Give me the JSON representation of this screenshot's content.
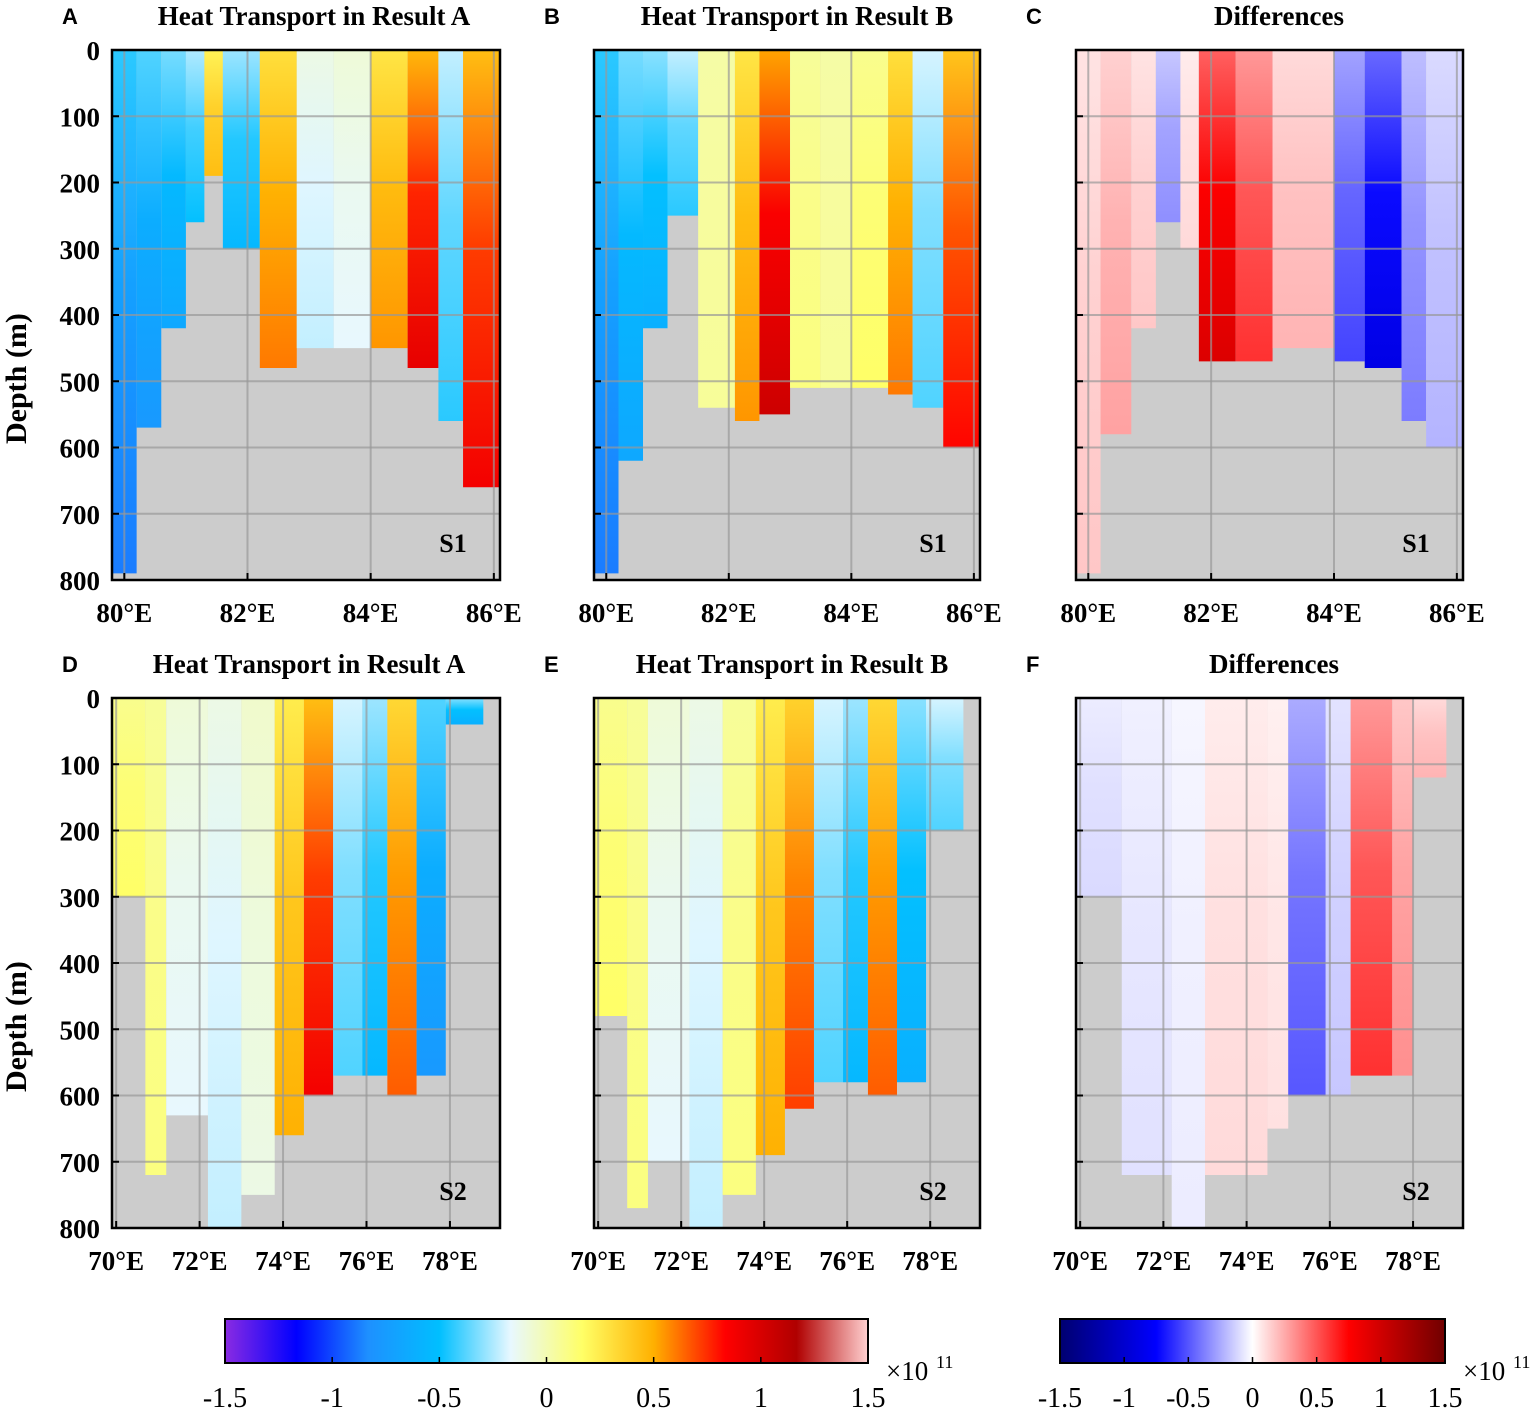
{
  "chart_data": [
    {
      "panel": "A",
      "type": "heatmap",
      "title": "Heat Transport in Result A",
      "section": "S1",
      "xlim": [
        79.8,
        86.1
      ],
      "ylim": [
        0,
        800
      ],
      "xticks": [
        "80°E",
        "82°E",
        "84°E",
        "86°E"
      ],
      "xtick_values": [
        80,
        82,
        84,
        86
      ],
      "yticks": [
        "0",
        "100",
        "200",
        "300",
        "400",
        "500",
        "600",
        "700",
        "800"
      ],
      "ytick_values": [
        0,
        100,
        200,
        300,
        400,
        500,
        600,
        700,
        800
      ],
      "ylabel": "Depth (m)",
      "units": "×10^11",
      "colormap": "heat",
      "columns": [
        {
          "x0": 79.8,
          "x1": 80.2,
          "v": -0.8,
          "bottom": 790
        },
        {
          "x0": 80.2,
          "x1": 80.6,
          "v": -0.7,
          "bottom": 570
        },
        {
          "x0": 80.6,
          "x1": 81.0,
          "v": -0.6,
          "bottom": 420
        },
        {
          "x0": 81.0,
          "x1": 81.3,
          "v": -0.45,
          "bottom": 260
        },
        {
          "x0": 81.3,
          "x1": 81.6,
          "v": 0.4,
          "bottom": 190
        },
        {
          "x0": 81.6,
          "x1": 82.2,
          "v": -0.5,
          "bottom": 300
        },
        {
          "x0": 82.2,
          "x1": 82.8,
          "v": 0.55,
          "bottom": 480
        },
        {
          "x0": 82.8,
          "x1": 83.4,
          "v": -0.2,
          "bottom": 450
        },
        {
          "x0": 83.4,
          "x1": 84.0,
          "v": -0.15,
          "bottom": 450
        },
        {
          "x0": 84.0,
          "x1": 84.6,
          "v": 0.5,
          "bottom": 450
        },
        {
          "x0": 84.6,
          "x1": 85.1,
          "v": 0.85,
          "bottom": 480
        },
        {
          "x0": 85.1,
          "x1": 85.5,
          "v": -0.4,
          "bottom": 560
        },
        {
          "x0": 85.5,
          "x1": 86.1,
          "v": 0.8,
          "bottom": 660
        }
      ]
    },
    {
      "panel": "B",
      "type": "heatmap",
      "title": "Heat Transport in Result B",
      "section": "S1",
      "xlim": [
        79.8,
        86.1
      ],
      "ylim": [
        0,
        800
      ],
      "xticks": [
        "80°E",
        "82°E",
        "84°E",
        "86°E"
      ],
      "xtick_values": [
        80,
        82,
        84,
        86
      ],
      "yticks": [],
      "ytick_values": [
        0,
        100,
        200,
        300,
        400,
        500,
        600,
        700,
        800
      ],
      "ylabel": "",
      "units": "×10^11",
      "colormap": "heat",
      "columns": [
        {
          "x0": 79.8,
          "x1": 80.2,
          "v": -0.8,
          "bottom": 790
        },
        {
          "x0": 80.2,
          "x1": 80.6,
          "v": -0.6,
          "bottom": 620
        },
        {
          "x0": 80.6,
          "x1": 81.0,
          "v": -0.55,
          "bottom": 420
        },
        {
          "x0": 81.0,
          "x1": 81.5,
          "v": -0.4,
          "bottom": 250
        },
        {
          "x0": 81.5,
          "x1": 82.1,
          "v": 0.05,
          "bottom": 540
        },
        {
          "x0": 82.1,
          "x1": 82.5,
          "v": 0.5,
          "bottom": 560
        },
        {
          "x0": 82.5,
          "x1": 83.0,
          "v": 0.95,
          "bottom": 550
        },
        {
          "x0": 83.0,
          "x1": 83.5,
          "v": 0.1,
          "bottom": 510
        },
        {
          "x0": 83.5,
          "x1": 84.0,
          "v": 0.05,
          "bottom": 510
        },
        {
          "x0": 84.0,
          "x1": 84.6,
          "v": 0.15,
          "bottom": 510
        },
        {
          "x0": 84.6,
          "x1": 85.0,
          "v": 0.55,
          "bottom": 520
        },
        {
          "x0": 85.0,
          "x1": 85.5,
          "v": -0.35,
          "bottom": 540
        },
        {
          "x0": 85.5,
          "x1": 86.1,
          "v": 0.75,
          "bottom": 600
        }
      ]
    },
    {
      "panel": "C",
      "type": "heatmap",
      "title": "Differences",
      "section": "S1",
      "xlim": [
        79.8,
        86.1
      ],
      "ylim": [
        0,
        800
      ],
      "xticks": [
        "80°E",
        "82°E",
        "84°E",
        "86°E"
      ],
      "xtick_values": [
        80,
        82,
        84,
        86
      ],
      "yticks": [],
      "ytick_values": [
        0,
        100,
        200,
        300,
        400,
        500,
        600,
        700,
        800
      ],
      "ylabel": "",
      "units": "×10^11",
      "colormap": "diff",
      "columns": [
        {
          "x0": 79.8,
          "x1": 80.2,
          "v": 0.15,
          "bottom": 790
        },
        {
          "x0": 80.2,
          "x1": 80.7,
          "v": 0.25,
          "bottom": 580
        },
        {
          "x0": 80.7,
          "x1": 81.1,
          "v": 0.15,
          "bottom": 420
        },
        {
          "x0": 81.1,
          "x1": 81.5,
          "v": -0.3,
          "bottom": 260
        },
        {
          "x0": 81.5,
          "x1": 81.8,
          "v": 0.1,
          "bottom": 300
        },
        {
          "x0": 81.8,
          "x1": 82.4,
          "v": 0.85,
          "bottom": 470
        },
        {
          "x0": 82.4,
          "x1": 83.0,
          "v": 0.55,
          "bottom": 470
        },
        {
          "x0": 83.0,
          "x1": 84.0,
          "v": 0.2,
          "bottom": 450
        },
        {
          "x0": 84.0,
          "x1": 84.5,
          "v": -0.5,
          "bottom": 470
        },
        {
          "x0": 84.5,
          "x1": 85.1,
          "v": -0.8,
          "bottom": 480
        },
        {
          "x0": 85.1,
          "x1": 85.5,
          "v": -0.35,
          "bottom": 560
        },
        {
          "x0": 85.5,
          "x1": 86.1,
          "v": -0.2,
          "bottom": 600
        }
      ]
    },
    {
      "panel": "D",
      "type": "heatmap",
      "title": "Heat Transport in Result A",
      "section": "S2",
      "xlim": [
        69.9,
        79.2
      ],
      "ylim": [
        0,
        800
      ],
      "xticks": [
        "70°E",
        "72°E",
        "74°E",
        "76°E",
        "78°E"
      ],
      "xtick_values": [
        70,
        72,
        74,
        76,
        78
      ],
      "yticks": [
        "0",
        "100",
        "200",
        "300",
        "400",
        "500",
        "600",
        "700",
        "800"
      ],
      "ytick_values": [
        0,
        100,
        200,
        300,
        400,
        500,
        600,
        700,
        800
      ],
      "ylabel": "Depth (m)",
      "units": "×10^11",
      "colormap": "heat",
      "columns": [
        {
          "x0": 69.9,
          "x1": 70.7,
          "v": 0.15,
          "bottom": 300
        },
        {
          "x0": 70.7,
          "x1": 71.2,
          "v": 0.1,
          "bottom": 720
        },
        {
          "x0": 71.2,
          "x1": 72.2,
          "v": -0.15,
          "bottom": 630
        },
        {
          "x0": 72.2,
          "x1": 73.0,
          "v": -0.2,
          "bottom": 800
        },
        {
          "x0": 73.0,
          "x1": 73.8,
          "v": -0.1,
          "bottom": 750
        },
        {
          "x0": 73.8,
          "x1": 74.5,
          "v": 0.45,
          "bottom": 660
        },
        {
          "x0": 74.5,
          "x1": 75.2,
          "v": 0.8,
          "bottom": 600
        },
        {
          "x0": 75.2,
          "x1": 75.9,
          "v": -0.35,
          "bottom": 570
        },
        {
          "x0": 75.9,
          "x1": 76.5,
          "v": -0.5,
          "bottom": 570
        },
        {
          "x0": 76.5,
          "x1": 77.2,
          "v": 0.6,
          "bottom": 600
        },
        {
          "x0": 77.2,
          "x1": 77.9,
          "v": -0.7,
          "bottom": 570
        },
        {
          "x0": 77.9,
          "x1": 78.8,
          "v": -0.55,
          "bottom": 40
        }
      ]
    },
    {
      "panel": "E",
      "type": "heatmap",
      "title": "Heat Transport in Result B",
      "section": "S2",
      "xlim": [
        69.9,
        79.2
      ],
      "ylim": [
        0,
        800
      ],
      "xticks": [
        "70°E",
        "72°E",
        "74°E",
        "76°E",
        "78°E"
      ],
      "xtick_values": [
        70,
        72,
        74,
        76,
        78
      ],
      "yticks": [],
      "ytick_values": [
        0,
        100,
        200,
        300,
        400,
        500,
        600,
        700,
        800
      ],
      "ylabel": "",
      "units": "×10^11",
      "colormap": "heat",
      "columns": [
        {
          "x0": 69.9,
          "x1": 70.7,
          "v": 0.15,
          "bottom": 480
        },
        {
          "x0": 70.7,
          "x1": 71.2,
          "v": 0.1,
          "bottom": 770
        },
        {
          "x0": 71.2,
          "x1": 72.2,
          "v": -0.15,
          "bottom": 700
        },
        {
          "x0": 72.2,
          "x1": 73.0,
          "v": -0.2,
          "bottom": 800
        },
        {
          "x0": 73.0,
          "x1": 73.8,
          "v": 0.1,
          "bottom": 750
        },
        {
          "x0": 73.8,
          "x1": 74.5,
          "v": 0.45,
          "bottom": 690
        },
        {
          "x0": 74.5,
          "x1": 75.2,
          "v": 0.65,
          "bottom": 620
        },
        {
          "x0": 75.2,
          "x1": 75.9,
          "v": -0.35,
          "bottom": 580
        },
        {
          "x0": 75.9,
          "x1": 76.5,
          "v": -0.5,
          "bottom": 580
        },
        {
          "x0": 76.5,
          "x1": 77.2,
          "v": 0.6,
          "bottom": 600
        },
        {
          "x0": 77.2,
          "x1": 77.9,
          "v": -0.55,
          "bottom": 580
        },
        {
          "x0": 77.9,
          "x1": 78.8,
          "v": -0.35,
          "bottom": 200
        }
      ]
    },
    {
      "panel": "F",
      "type": "heatmap",
      "title": "Differences",
      "section": "S2",
      "xlim": [
        69.9,
        79.2
      ],
      "ylim": [
        0,
        800
      ],
      "xticks": [
        "70°E",
        "72°E",
        "74°E",
        "76°E",
        "78°E"
      ],
      "xtick_values": [
        70,
        72,
        74,
        76,
        78
      ],
      "yticks": [],
      "ytick_values": [
        0,
        100,
        200,
        300,
        400,
        500,
        600,
        700,
        800
      ],
      "ylabel": "",
      "units": "×10^11",
      "colormap": "diff",
      "columns": [
        {
          "x0": 69.9,
          "x1": 71.0,
          "v": -0.1,
          "bottom": 300
        },
        {
          "x0": 71.0,
          "x1": 72.2,
          "v": -0.08,
          "bottom": 720
        },
        {
          "x0": 72.2,
          "x1": 73.0,
          "v": -0.05,
          "bottom": 800
        },
        {
          "x0": 73.0,
          "x1": 74.5,
          "v": 0.1,
          "bottom": 720
        },
        {
          "x0": 74.5,
          "x1": 75.0,
          "v": 0.08,
          "bottom": 650
        },
        {
          "x0": 75.0,
          "x1": 75.9,
          "v": -0.45,
          "bottom": 600
        },
        {
          "x0": 75.9,
          "x1": 76.5,
          "v": -0.15,
          "bottom": 600
        },
        {
          "x0": 76.5,
          "x1": 77.5,
          "v": 0.55,
          "bottom": 570
        },
        {
          "x0": 77.5,
          "x1": 78.0,
          "v": 0.3,
          "bottom": 570
        },
        {
          "x0": 78.0,
          "x1": 78.8,
          "v": 0.2,
          "bottom": 120
        }
      ]
    }
  ],
  "colorbars": [
    {
      "name": "heat",
      "ticks": [
        "-1.5",
        "-1",
        "-0.5",
        "0",
        "0.5",
        "1",
        "1.5"
      ],
      "tick_values": [
        -1.5,
        -1,
        -0.5,
        0,
        0.5,
        1,
        1.5
      ],
      "range": [
        -1.5,
        1.5
      ],
      "exp_base": "×10",
      "exp_power": "11",
      "stops": [
        "#8a2be2",
        "#0000ff",
        "#1e90ff",
        "#00bfff",
        "#e8f8ff",
        "#ffff66",
        "#ffb000",
        "#ff0000",
        "#b00000",
        "#ffd0d0"
      ]
    },
    {
      "name": "diff",
      "ticks": [
        "-1.5",
        "-1",
        "-0.5",
        "0",
        "0.5",
        "1",
        "1.5"
      ],
      "tick_values": [
        -1.5,
        -1,
        -0.5,
        0,
        0.5,
        1,
        1.5
      ],
      "range": [
        -1.5,
        1.5
      ],
      "exp_base": "×10",
      "exp_power": "11",
      "stops": [
        "#000070",
        "#0000ff",
        "#ffffff",
        "#ff0000",
        "#700000"
      ]
    }
  ],
  "colors": {
    "land": "#cccccc",
    "grid": "#999999"
  }
}
